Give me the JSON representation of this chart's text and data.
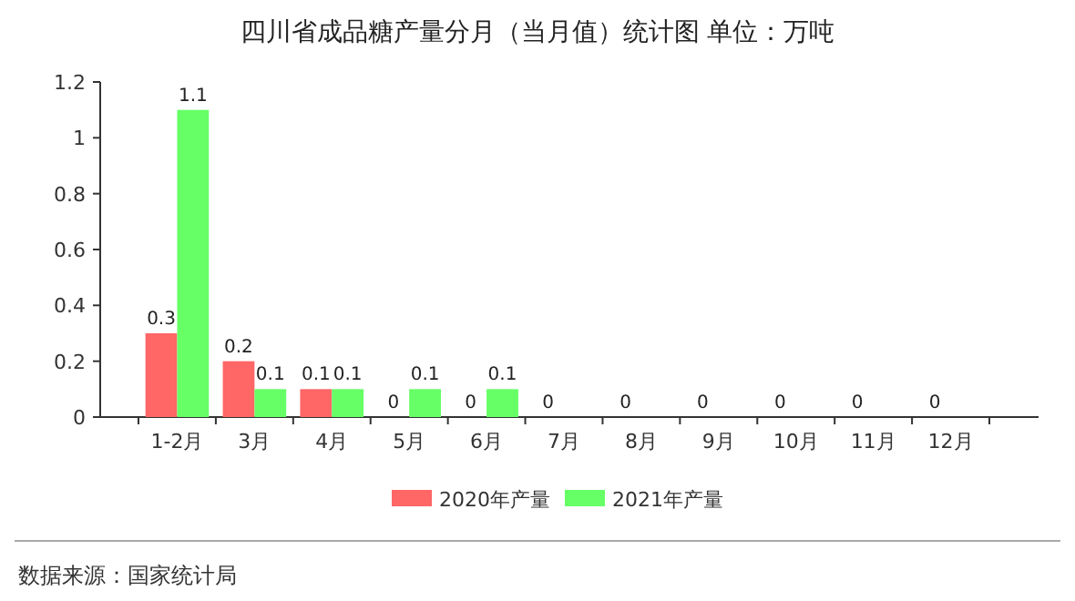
{
  "chart_data": {
    "type": "bar",
    "title": "四川省成品糖产量分月（当月值）统计图 单位：万吨",
    "categories": [
      "1-2月",
      "3月",
      "4月",
      "5月",
      "6月",
      "7月",
      "8月",
      "9月",
      "10月",
      "11月",
      "12月"
    ],
    "series": [
      {
        "name": "2020年产量",
        "color": "#ff6666",
        "values": [
          0.3,
          0.2,
          0.1,
          0,
          0,
          0,
          0,
          0,
          0,
          0,
          0
        ]
      },
      {
        "name": "2021年产量",
        "color": "#66ff66",
        "values": [
          1.1,
          0.1,
          0.1,
          0.1,
          0.1,
          null,
          null,
          null,
          null,
          null,
          null
        ]
      }
    ],
    "ylim": [
      0,
      1.2
    ],
    "yticks": [
      0,
      0.2,
      0.4,
      0.6,
      0.8,
      1,
      1.2
    ],
    "data_labels": true,
    "legend": "bottom",
    "grid": false,
    "annotations": [
      "数据来源：国家统计局"
    ]
  }
}
